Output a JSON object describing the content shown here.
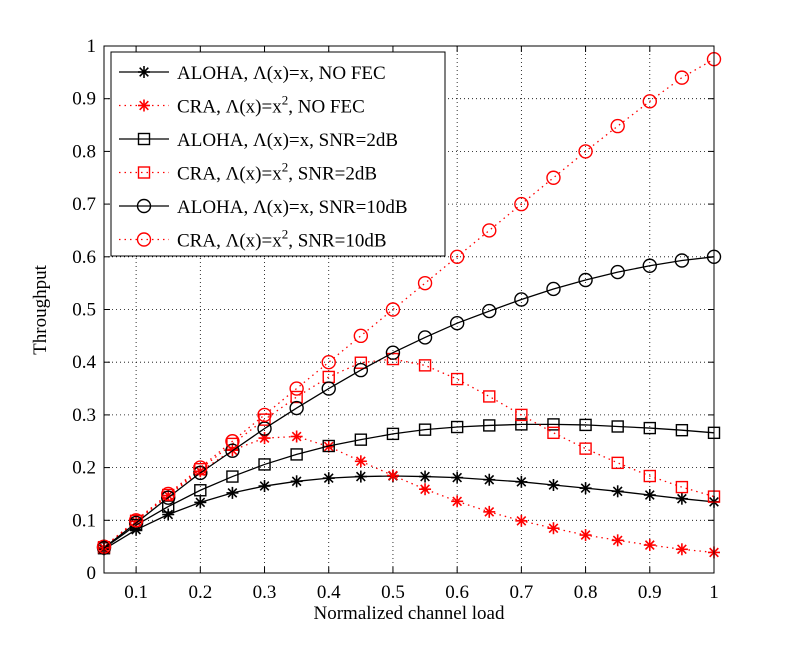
{
  "chart_data": {
    "type": "line",
    "title": "",
    "xlabel": "Normalized channel load",
    "ylabel": "Throughput",
    "xlim": [
      0.05,
      1
    ],
    "ylim": [
      0,
      1
    ],
    "grid": true,
    "legend_position": "top-left",
    "x_ticks": [
      "0.1",
      "0.2",
      "0.3",
      "0.4",
      "0.5",
      "0.6",
      "0.7",
      "0.8",
      "0.9",
      "1"
    ],
    "y_ticks": [
      "0",
      "0.1",
      "0.2",
      "0.3",
      "0.4",
      "0.5",
      "0.6",
      "0.7",
      "0.8",
      "0.9",
      "1"
    ],
    "x": [
      0.05,
      0.1,
      0.15,
      0.2,
      0.25,
      0.3,
      0.35,
      0.4,
      0.45,
      0.5,
      0.55,
      0.6,
      0.65,
      0.7,
      0.75,
      0.8,
      0.85,
      0.9,
      0.95,
      1.0
    ],
    "series": [
      {
        "name": "ALOHA, Λ(x)=x, NO FEC",
        "legend_base": "ALOHA, Λ(x)=x, NO FEC",
        "legend_sup": "",
        "legend_tail": "",
        "color": "#000000",
        "line": "solid",
        "marker": "star",
        "values": [
          0.045,
          0.082,
          0.111,
          0.134,
          0.152,
          0.165,
          0.174,
          0.18,
          0.183,
          0.184,
          0.183,
          0.181,
          0.177,
          0.173,
          0.167,
          0.161,
          0.155,
          0.148,
          0.141,
          0.135
        ]
      },
      {
        "name": "CRA, Λ(x)=x2, NO FEC",
        "legend_base": "CRA, Λ(x)=x",
        "legend_sup": "2",
        "legend_tail": ", NO FEC",
        "color": "#ff0000",
        "line": "dotted",
        "marker": "star",
        "values": [
          0.048,
          0.098,
          0.147,
          0.193,
          0.233,
          0.256,
          0.259,
          0.24,
          0.212,
          0.185,
          0.159,
          0.136,
          0.116,
          0.099,
          0.085,
          0.072,
          0.062,
          0.053,
          0.045,
          0.039
        ]
      },
      {
        "name": "ALOHA, Λ(x)=x, SNR=2dB",
        "legend_base": "ALOHA, Λ(x)=x, SNR=2dB",
        "legend_sup": "",
        "legend_tail": "",
        "color": "#000000",
        "line": "solid",
        "marker": "square",
        "values": [
          0.047,
          0.091,
          0.126,
          0.157,
          0.183,
          0.206,
          0.225,
          0.241,
          0.253,
          0.264,
          0.272,
          0.277,
          0.28,
          0.282,
          0.282,
          0.281,
          0.278,
          0.275,
          0.271,
          0.266
        ]
      },
      {
        "name": "CRA, Λ(x)=x2, SNR=2dB",
        "legend_base": "CRA, Λ(x)=x",
        "legend_sup": "2",
        "legend_tail": ", SNR=2dB",
        "color": "#ff0000",
        "line": "dotted",
        "marker": "square",
        "values": [
          0.049,
          0.099,
          0.148,
          0.197,
          0.245,
          0.291,
          0.334,
          0.372,
          0.399,
          0.406,
          0.394,
          0.368,
          0.335,
          0.3,
          0.266,
          0.236,
          0.209,
          0.184,
          0.163,
          0.145
        ]
      },
      {
        "name": "ALOHA, Λ(x)=x, SNR=10dB",
        "legend_base": "ALOHA, Λ(x)=x, SNR=10dB",
        "legend_sup": "",
        "legend_tail": "",
        "color": "#000000",
        "line": "solid",
        "marker": "circle",
        "values": [
          0.048,
          0.095,
          0.143,
          0.19,
          0.232,
          0.274,
          0.313,
          0.35,
          0.385,
          0.418,
          0.447,
          0.474,
          0.497,
          0.519,
          0.539,
          0.556,
          0.571,
          0.583,
          0.593,
          0.6
        ]
      },
      {
        "name": "CRA, Λ(x)=x2, SNR=10dB",
        "legend_base": "CRA, Λ(x)=x",
        "legend_sup": "2",
        "legend_tail": ", SNR=10dB",
        "color": "#ff0000",
        "line": "dotted",
        "marker": "circle",
        "values": [
          0.05,
          0.1,
          0.15,
          0.2,
          0.25,
          0.3,
          0.35,
          0.4,
          0.45,
          0.5,
          0.55,
          0.6,
          0.65,
          0.7,
          0.75,
          0.8,
          0.848,
          0.895,
          0.94,
          0.975
        ]
      }
    ]
  }
}
